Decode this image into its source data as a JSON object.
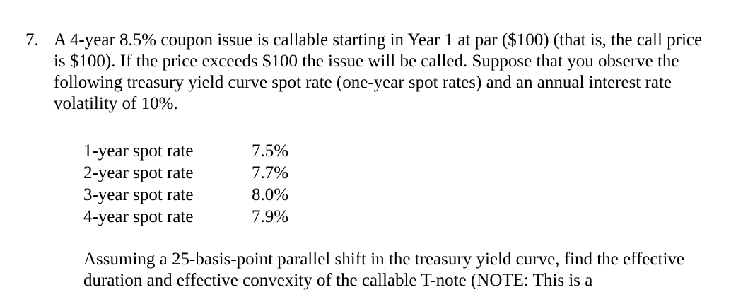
{
  "problem": {
    "number": "7.",
    "text": "A 4-year 8.5% coupon issue is callable starting in Year 1 at par ($100) (that is, the call price is $100). If the price exceeds $100 the issue will be called.  Suppose that you observe the following treasury yield curve spot rate (one-year spot rates) and an annual interest rate volatility of 10%."
  },
  "spot_rates": [
    {
      "label": "1-year spot rate",
      "value": "7.5%"
    },
    {
      "label": "2-year spot rate",
      "value": "7.7%"
    },
    {
      "label": "3-year spot rate",
      "value": "8.0%"
    },
    {
      "label": "4-year spot rate",
      "value": "7.9%"
    }
  ],
  "followup": {
    "text": "Assuming a 25-basis-point parallel shift in the treasury yield curve, find the effective duration and effective convexity of the callable T-note (NOTE: This is a"
  }
}
